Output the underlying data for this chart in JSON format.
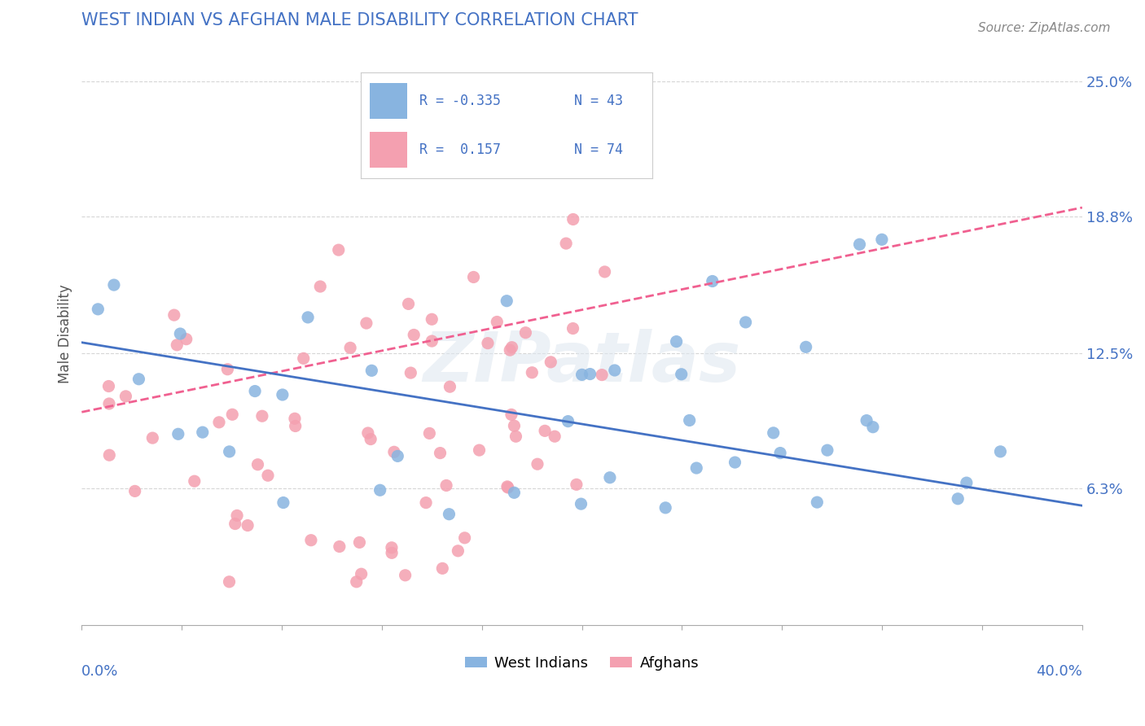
{
  "title": "WEST INDIAN VS AFGHAN MALE DISABILITY CORRELATION CHART",
  "source": "Source: ZipAtlas.com",
  "ylabel": "Male Disability",
  "y_ticks": [
    0.063,
    0.125,
    0.188,
    0.25
  ],
  "y_tick_labels": [
    "6.3%",
    "12.5%",
    "18.8%",
    "25.0%"
  ],
  "xlim": [
    0.0,
    0.4
  ],
  "ylim": [
    0.0,
    0.268
  ],
  "west_indian_color": "#88b4e0",
  "afghan_color": "#f4a0b0",
  "west_indian_line_color": "#4472c4",
  "afghan_line_color": "#f06090",
  "afghan_trend_line_color": "#c8c8c8",
  "R_west_indian": -0.335,
  "N_west_indian": 43,
  "R_afghan": 0.157,
  "N_afghan": 74,
  "title_color": "#4472c4",
  "source_color": "#888888",
  "watermark": "ZIPatlas",
  "background_color": "#ffffff",
  "wi_trend_x0": 0.0,
  "wi_trend_y0": 0.13,
  "wi_trend_x1": 0.4,
  "wi_trend_y1": 0.055,
  "af_trend_x0": 0.0,
  "af_trend_y0": 0.098,
  "af_trend_x1": 0.4,
  "af_trend_y1": 0.192
}
